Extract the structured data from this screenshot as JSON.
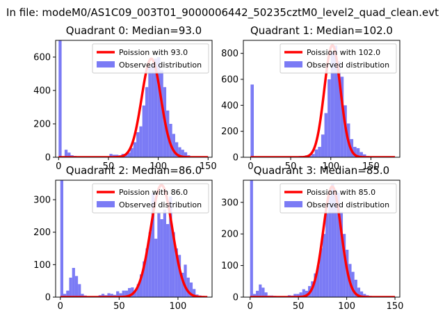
{
  "figure_title": "In file: modeM0/AS1C09_003T01_9000006442_50235cztM0_level2_quad_clean.evt",
  "colors": {
    "hist": "#7b7bf5",
    "poisson": "#ff0000"
  },
  "chart_data": [
    {
      "type": "histogram",
      "title": "Quadrant 0: Median=93.0",
      "xlim": [
        -3,
        154
      ],
      "ylim": [
        0,
        700
      ],
      "xticks": [
        0,
        50,
        100,
        150
      ],
      "yticks": [
        0,
        200,
        400,
        600
      ],
      "bin_width": 3,
      "hist_points": [
        [
          0,
          700
        ],
        [
          3,
          5
        ],
        [
          6,
          45
        ],
        [
          9,
          28
        ],
        [
          12,
          12
        ],
        [
          15,
          8
        ],
        [
          18,
          4
        ],
        [
          21,
          2
        ],
        [
          30,
          2
        ],
        [
          39,
          2
        ],
        [
          45,
          5
        ],
        [
          48,
          5
        ],
        [
          51,
          20
        ],
        [
          54,
          15
        ],
        [
          57,
          15
        ],
        [
          60,
          12
        ],
        [
          63,
          20
        ],
        [
          66,
          15
        ],
        [
          69,
          28
        ],
        [
          72,
          55
        ],
        [
          75,
          90
        ],
        [
          78,
          150
        ],
        [
          81,
          185
        ],
        [
          84,
          310
        ],
        [
          87,
          420
        ],
        [
          90,
          540
        ],
        [
          93,
          560
        ],
        [
          96,
          590
        ],
        [
          99,
          600
        ],
        [
          102,
          520
        ],
        [
          105,
          420
        ],
        [
          108,
          280
        ],
        [
          111,
          200
        ],
        [
          114,
          140
        ],
        [
          117,
          90
        ],
        [
          120,
          60
        ],
        [
          123,
          45
        ],
        [
          126,
          30
        ],
        [
          129,
          12
        ],
        [
          132,
          5
        ],
        [
          135,
          3
        ],
        [
          138,
          1
        ]
      ],
      "poisson_mean": 93.0,
      "poisson_peak": 590,
      "curve_range": [
        0,
        150
      ],
      "legend": [
        "Poission with 93.0",
        "Observed distribution"
      ]
    },
    {
      "type": "histogram",
      "title": "Quadrant 1: Median=102.0",
      "xlim": [
        -9,
        186
      ],
      "ylim": [
        0,
        900
      ],
      "xticks": [
        0,
        50,
        100,
        150
      ],
      "yticks": [
        0,
        200,
        400,
        600,
        800
      ],
      "bin_width": 4,
      "hist_points": [
        [
          0,
          560
        ],
        [
          4,
          3
        ],
        [
          8,
          2
        ],
        [
          12,
          2
        ],
        [
          16,
          2
        ],
        [
          20,
          1
        ],
        [
          56,
          5
        ],
        [
          60,
          10
        ],
        [
          64,
          8
        ],
        [
          68,
          15
        ],
        [
          72,
          10
        ],
        [
          76,
          25
        ],
        [
          80,
          60
        ],
        [
          84,
          80
        ],
        [
          88,
          175
        ],
        [
          92,
          340
        ],
        [
          96,
          600
        ],
        [
          100,
          810
        ],
        [
          104,
          860
        ],
        [
          108,
          740
        ],
        [
          112,
          620
        ],
        [
          116,
          400
        ],
        [
          120,
          260
        ],
        [
          124,
          140
        ],
        [
          128,
          80
        ],
        [
          132,
          70
        ],
        [
          136,
          40
        ],
        [
          140,
          22
        ],
        [
          144,
          10
        ],
        [
          148,
          6
        ],
        [
          152,
          4
        ],
        [
          156,
          2
        ],
        [
          160,
          1
        ]
      ],
      "poisson_mean": 102.0,
      "poisson_peak": 862,
      "curve_range": [
        0,
        180
      ],
      "legend": [
        "Poission with 102.0",
        "Observed distribution"
      ]
    },
    {
      "type": "histogram",
      "title": "Quadrant 2: Median=86.0",
      "xlim": [
        -4,
        129
      ],
      "ylim": [
        0,
        360
      ],
      "xticks": [
        0,
        50,
        100
      ],
      "yticks": [
        0,
        100,
        200,
        300
      ],
      "bin_width": 2.5,
      "hist_points": [
        [
          0,
          360
        ],
        [
          2.5,
          10
        ],
        [
          5,
          20
        ],
        [
          7.5,
          60
        ],
        [
          10,
          90
        ],
        [
          12.5,
          65
        ],
        [
          15,
          40
        ],
        [
          17.5,
          10
        ],
        [
          20,
          5
        ],
        [
          22.5,
          3
        ],
        [
          25,
          3
        ],
        [
          27.5,
          3
        ],
        [
          30,
          3
        ],
        [
          32.5,
          6
        ],
        [
          35,
          10
        ],
        [
          37.5,
          6
        ],
        [
          40,
          12
        ],
        [
          42.5,
          10
        ],
        [
          45,
          7
        ],
        [
          47.5,
          18
        ],
        [
          50,
          12
        ],
        [
          52.5,
          20
        ],
        [
          55,
          20
        ],
        [
          57.5,
          28
        ],
        [
          60,
          30
        ],
        [
          62.5,
          20
        ],
        [
          65,
          40
        ],
        [
          67.5,
          70
        ],
        [
          70,
          110
        ],
        [
          72.5,
          150
        ],
        [
          75,
          200
        ],
        [
          77.5,
          320
        ],
        [
          80,
          180
        ],
        [
          82.5,
          260
        ],
        [
          85,
          240
        ],
        [
          87.5,
          270
        ],
        [
          90,
          225
        ],
        [
          92.5,
          310
        ],
        [
          95,
          200
        ],
        [
          97.5,
          150
        ],
        [
          100,
          130
        ],
        [
          102.5,
          75
        ],
        [
          105,
          100
        ],
        [
          107.5,
          60
        ],
        [
          110,
          45
        ],
        [
          112.5,
          25
        ],
        [
          115,
          8
        ],
        [
          117.5,
          5
        ],
        [
          120,
          3
        ]
      ],
      "poisson_mean": 86.0,
      "poisson_peak": 345,
      "curve_range": [
        0,
        125
      ],
      "legend": [
        "Poission with 86.0",
        "Observed distribution"
      ]
    },
    {
      "type": "histogram",
      "title": "Quadrant 3: Median=85.0",
      "xlim": [
        -7,
        155
      ],
      "ylim": [
        0,
        370
      ],
      "xticks": [
        0,
        50,
        100,
        150
      ],
      "yticks": [
        0,
        100,
        200,
        300
      ],
      "bin_width": 3,
      "hist_points": [
        [
          0,
          370
        ],
        [
          3,
          10
        ],
        [
          6,
          20
        ],
        [
          9,
          40
        ],
        [
          12,
          30
        ],
        [
          15,
          15
        ],
        [
          18,
          5
        ],
        [
          21,
          5
        ],
        [
          24,
          4
        ],
        [
          27,
          3
        ],
        [
          30,
          3
        ],
        [
          33,
          3
        ],
        [
          36,
          3
        ],
        [
          39,
          6
        ],
        [
          42,
          5
        ],
        [
          45,
          10
        ],
        [
          48,
          10
        ],
        [
          51,
          15
        ],
        [
          54,
          25
        ],
        [
          57,
          20
        ],
        [
          60,
          35
        ],
        [
          63,
          50
        ],
        [
          66,
          75
        ],
        [
          69,
          100
        ],
        [
          72,
          155
        ],
        [
          75,
          200
        ],
        [
          78,
          265
        ],
        [
          81,
          320
        ],
        [
          84,
          360
        ],
        [
          87,
          340
        ],
        [
          90,
          330
        ],
        [
          93,
          270
        ],
        [
          96,
          200
        ],
        [
          99,
          150
        ],
        [
          102,
          105
        ],
        [
          105,
          80
        ],
        [
          108,
          55
        ],
        [
          111,
          30
        ],
        [
          114,
          18
        ],
        [
          117,
          10
        ],
        [
          120,
          6
        ],
        [
          123,
          4
        ],
        [
          126,
          2
        ]
      ],
      "poisson_mean": 85.0,
      "poisson_peak": 350,
      "curve_range": [
        0,
        150
      ],
      "legend": [
        "Poission with 85.0",
        "Observed distribution"
      ]
    }
  ]
}
